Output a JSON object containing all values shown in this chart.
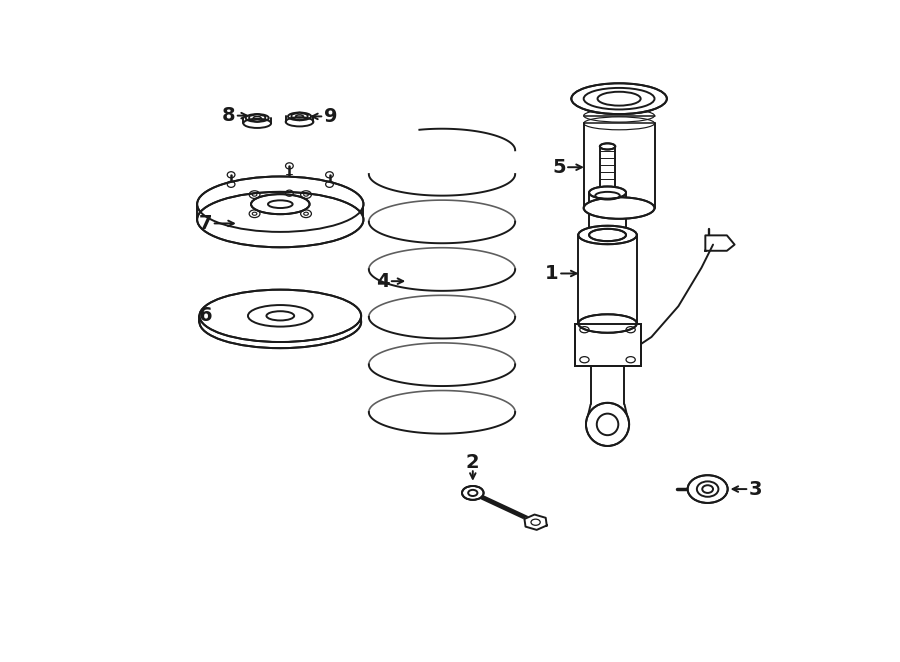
{
  "bg_color": "#ffffff",
  "line_color": "#1a1a1a",
  "lw": 1.4,
  "fig_width": 9.0,
  "fig_height": 6.62,
  "dpi": 100
}
